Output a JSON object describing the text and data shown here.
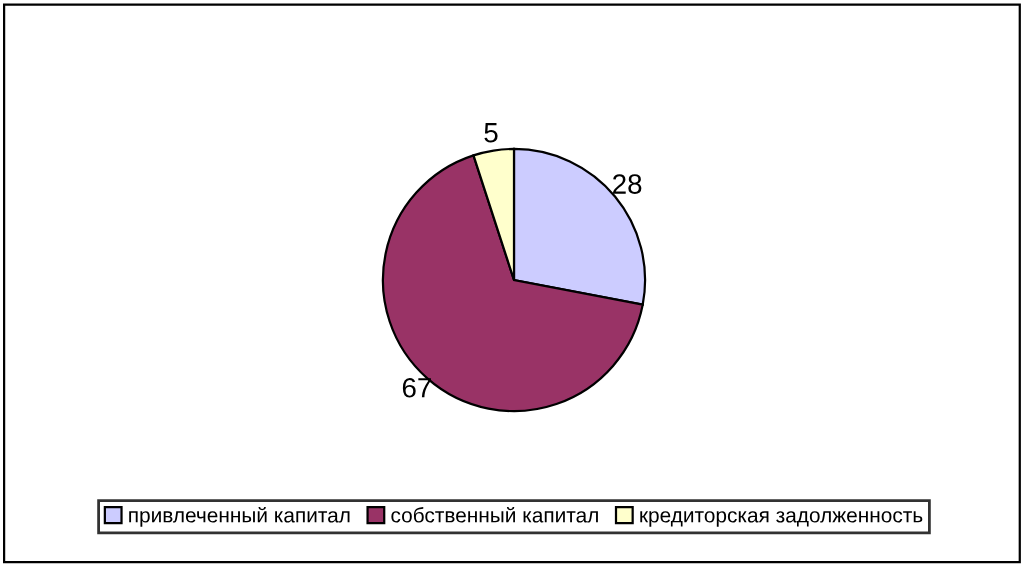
{
  "chart_data": {
    "type": "pie",
    "categories": [
      "привлеченный капитал",
      "собственный капитал",
      "кредиторская задолженность"
    ],
    "values": [
      28,
      67,
      5
    ],
    "colors": [
      "#ccccff",
      "#993366",
      "#ffffcc"
    ],
    "data_labels": true,
    "legend": "bottom"
  }
}
